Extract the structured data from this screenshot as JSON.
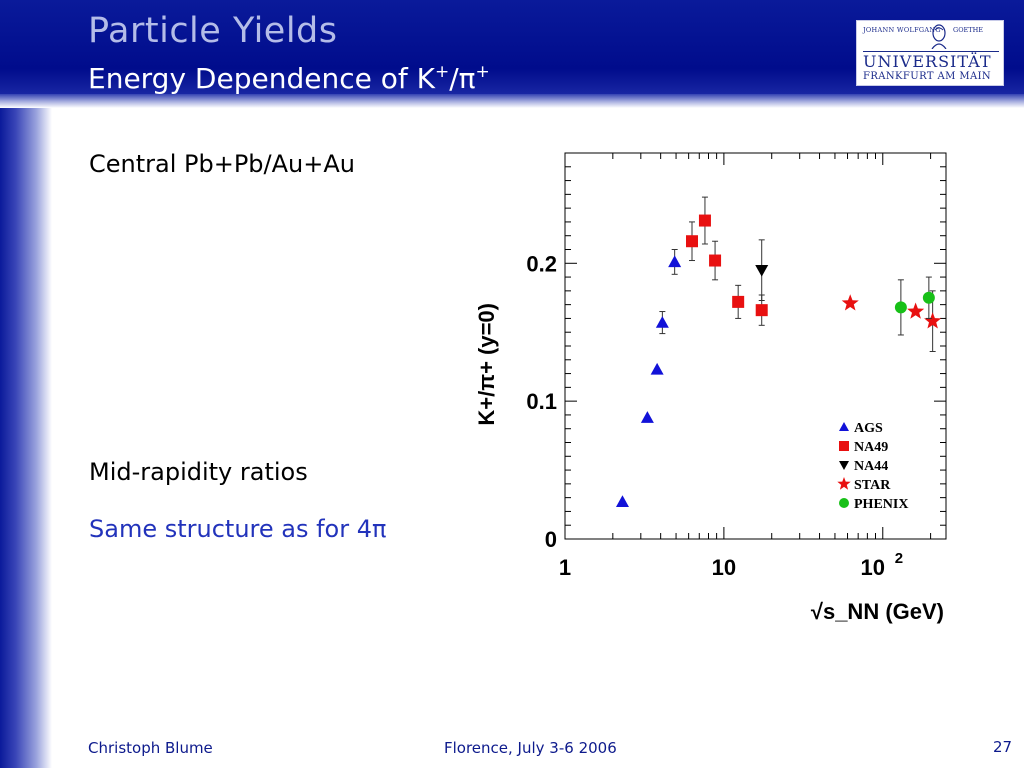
{
  "header": {
    "title": "Particle Yields",
    "subtitle_main": "Energy Dependence of K",
    "subtitle_sup1": "+",
    "subtitle_slash": "/π",
    "subtitle_sup2": "+"
  },
  "logo": {
    "top_left": "JOHANN WOLFGANG",
    "top_right": "GOETHE",
    "name": "UNIVERSITÄT",
    "city": "FRANKFURT AM MAIN"
  },
  "body": {
    "system": "Central Pb+Pb/Au+Au",
    "note1": "Mid-rapidity ratios",
    "note2": "Same structure as for 4π"
  },
  "footer": {
    "author": "Christoph Blume",
    "event": "Florence, July 3-6 2006",
    "page": "27"
  },
  "colors": {
    "header_bg": "#000c8c",
    "AGS": "#1212d8",
    "NA49": "#e81010",
    "NA44": "#000000",
    "STAR": "#e81010",
    "PHENIX": "#18c018"
  },
  "chart_data": {
    "type": "scatter",
    "xlabel": "√s_NN (GeV)",
    "ylabel": "K+/π+ (y=0)",
    "xscale": "log",
    "xlim": [
      1,
      250
    ],
    "ylim": [
      0,
      0.28
    ],
    "xtick_labels": [
      "1",
      "10",
      "10^2"
    ],
    "ytick_labels": [
      "0",
      "0.1",
      "0.2"
    ],
    "legend_position": "bottom-right",
    "series": [
      {
        "name": "AGS",
        "marker": "triangle-up",
        "points": [
          {
            "x": 2.3,
            "y": 0.027
          },
          {
            "x": 3.3,
            "y": 0.088
          },
          {
            "x": 3.8,
            "y": 0.123
          },
          {
            "x": 4.1,
            "y": 0.157,
            "err": 0.008
          },
          {
            "x": 4.9,
            "y": 0.201,
            "err": 0.009
          }
        ]
      },
      {
        "name": "NA49",
        "marker": "square",
        "points": [
          {
            "x": 6.3,
            "y": 0.216,
            "err": 0.014
          },
          {
            "x": 7.6,
            "y": 0.231,
            "err": 0.017
          },
          {
            "x": 8.8,
            "y": 0.202,
            "err": 0.014
          },
          {
            "x": 12.3,
            "y": 0.172,
            "err": 0.012
          },
          {
            "x": 17.3,
            "y": 0.166,
            "err": 0.011
          }
        ]
      },
      {
        "name": "NA44",
        "marker": "triangle-down",
        "points": [
          {
            "x": 17.3,
            "y": 0.195,
            "err": 0.022
          }
        ]
      },
      {
        "name": "STAR",
        "marker": "star",
        "points": [
          {
            "x": 62.4,
            "y": 0.171
          },
          {
            "x": 161,
            "y": 0.165
          },
          {
            "x": 206,
            "y": 0.158,
            "err": 0.022
          }
        ]
      },
      {
        "name": "PHENIX",
        "marker": "circle",
        "points": [
          {
            "x": 130,
            "y": 0.168,
            "err": 0.02
          },
          {
            "x": 195,
            "y": 0.175,
            "err": 0.015
          }
        ]
      }
    ]
  }
}
